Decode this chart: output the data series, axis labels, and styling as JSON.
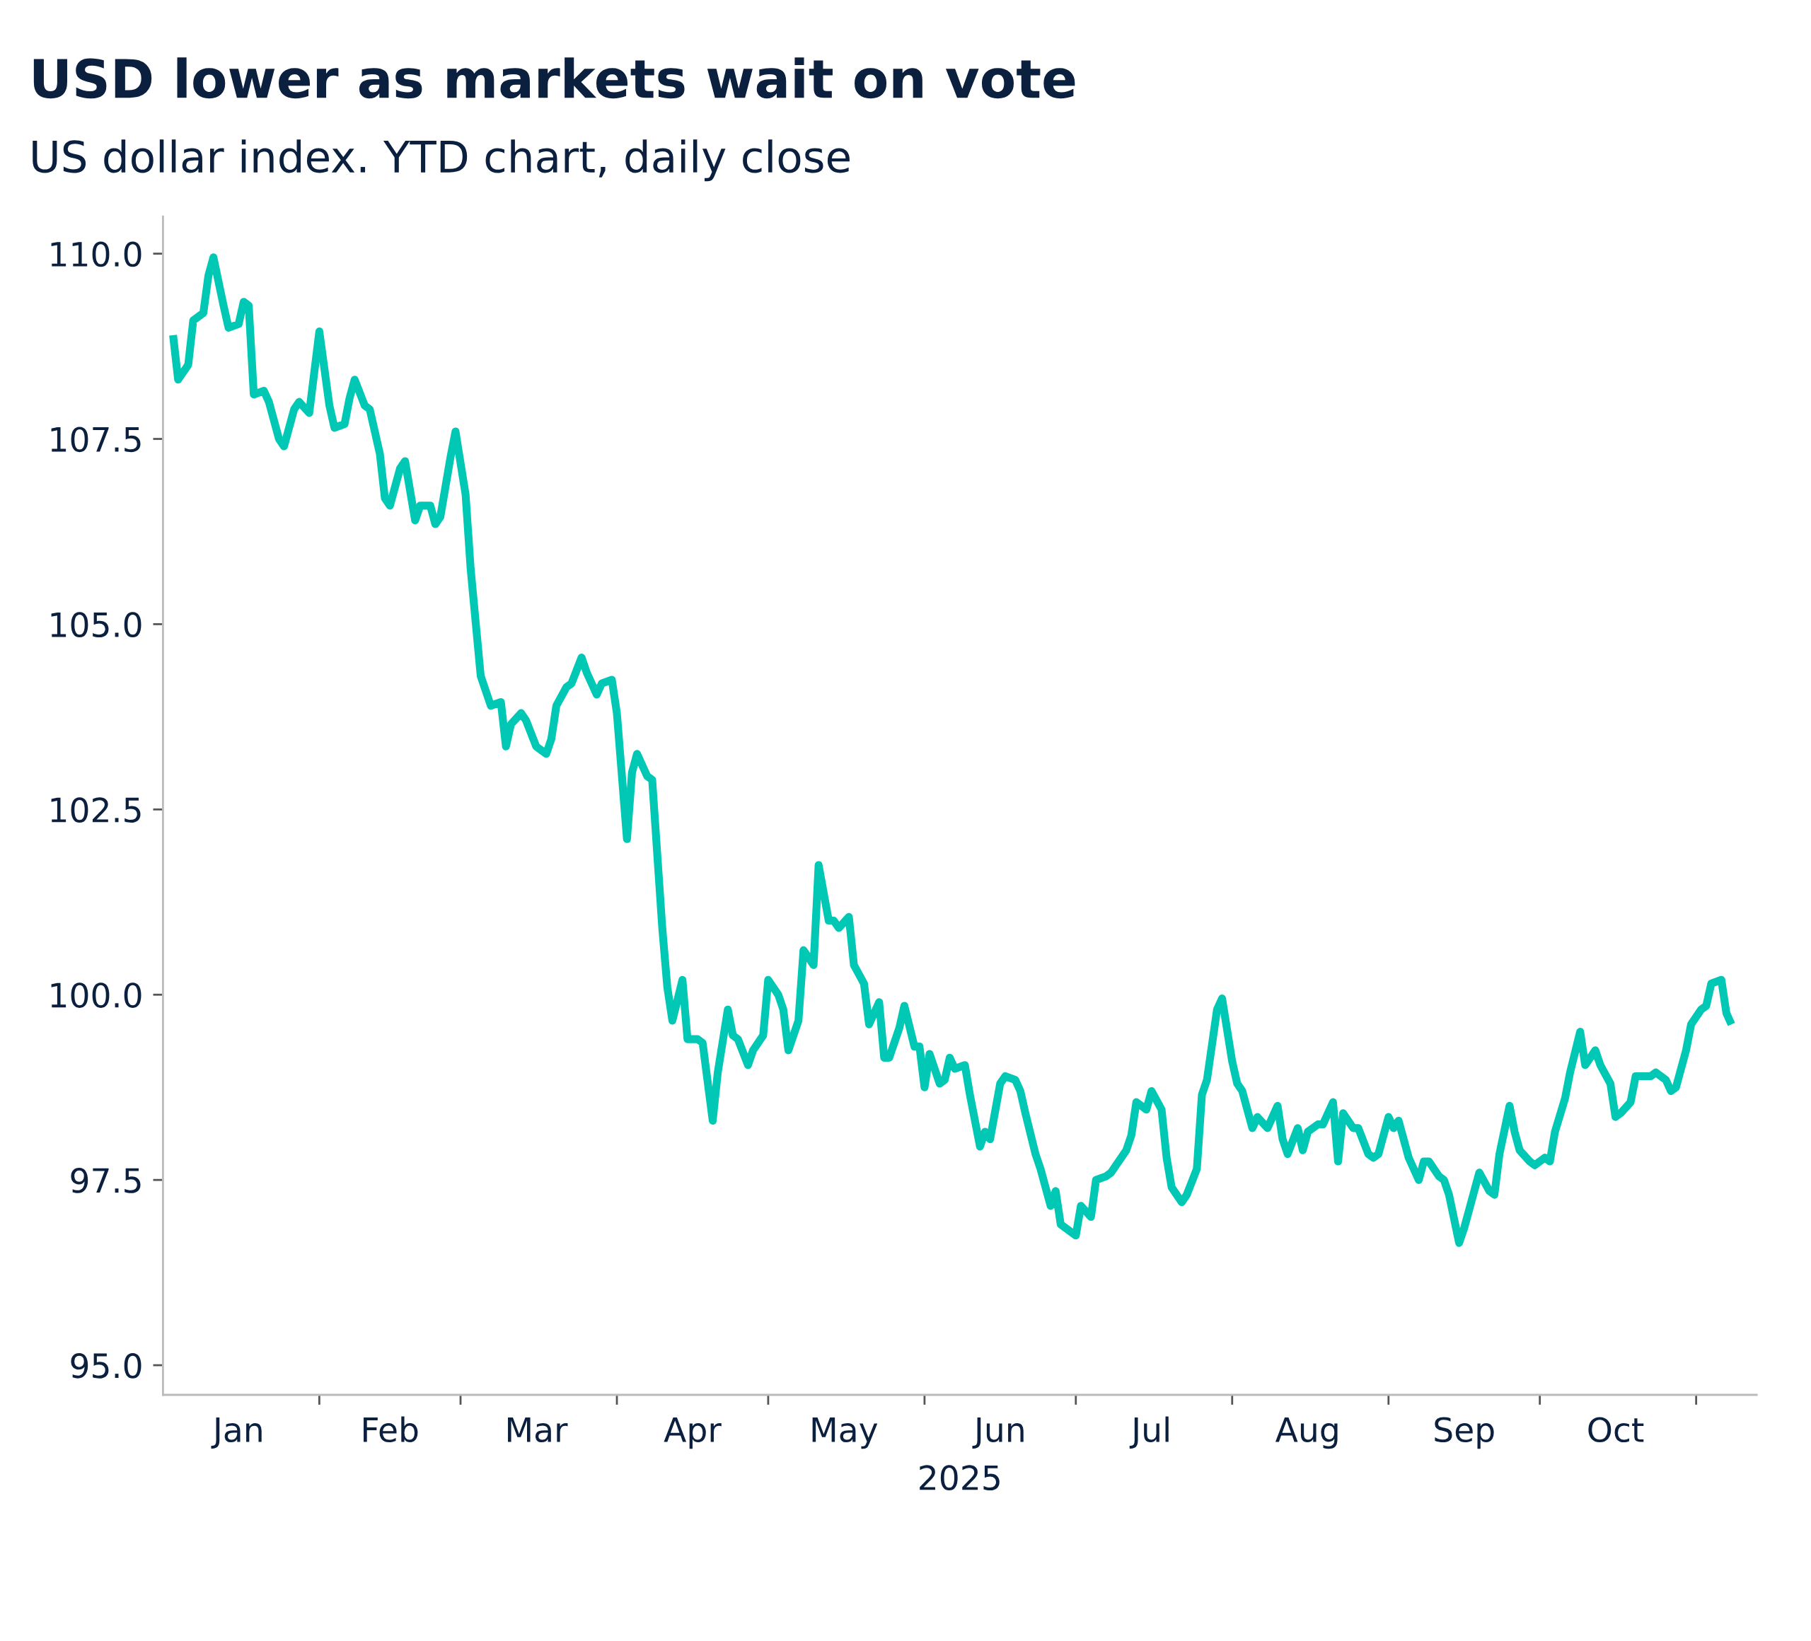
{
  "chart_data": {
    "type": "line",
    "title": "USD lower as markets wait on vote",
    "subtitle": "US dollar index. YTD chart, daily close",
    "xlabel": "2025",
    "x": [
      "2025-01-03",
      "2025-01-04",
      "2025-01-06",
      "2025-01-07",
      "2025-01-09",
      "2025-01-10",
      "2025-01-11",
      "2025-01-13",
      "2025-01-14",
      "2025-01-16",
      "2025-01-17",
      "2025-01-18",
      "2025-01-19",
      "2025-01-21",
      "2025-01-22",
      "2025-01-24",
      "2025-01-25",
      "2025-01-27",
      "2025-01-28",
      "2025-01-30",
      "2025-01-31",
      "2025-02-01",
      "2025-02-03",
      "2025-02-04",
      "2025-02-06",
      "2025-02-07",
      "2025-02-08",
      "2025-02-10",
      "2025-02-11",
      "2025-02-13",
      "2025-02-14",
      "2025-02-15",
      "2025-02-17",
      "2025-02-18",
      "2025-02-20",
      "2025-02-21",
      "2025-02-23",
      "2025-02-24",
      "2025-02-25",
      "2025-02-27",
      "2025-02-28",
      "2025-03-02",
      "2025-03-03",
      "2025-03-05",
      "2025-03-06",
      "2025-03-07",
      "2025-03-09",
      "2025-03-10",
      "2025-03-11",
      "2025-03-13",
      "2025-03-14",
      "2025-03-16",
      "2025-03-18",
      "2025-03-19",
      "2025-03-20",
      "2025-03-22",
      "2025-03-23",
      "2025-03-25",
      "2025-03-26",
      "2025-03-28",
      "2025-03-29",
      "2025-03-31",
      "2025-04-01",
      "2025-04-03",
      "2025-04-04",
      "2025-04-05",
      "2025-04-07",
      "2025-04-08",
      "2025-04-10",
      "2025-04-11",
      "2025-04-12",
      "2025-04-14",
      "2025-04-15",
      "2025-04-17",
      "2025-04-18",
      "2025-04-20",
      "2025-04-21",
      "2025-04-23",
      "2025-04-24",
      "2025-04-25",
      "2025-04-27",
      "2025-04-28",
      "2025-04-30",
      "2025-05-01",
      "2025-05-03",
      "2025-05-04",
      "2025-05-05",
      "2025-05-07",
      "2025-05-08",
      "2025-05-10",
      "2025-05-11",
      "2025-05-13",
      "2025-05-14",
      "2025-05-15",
      "2025-05-17",
      "2025-05-18",
      "2025-05-20",
      "2025-05-21",
      "2025-05-23",
      "2025-05-24",
      "2025-05-25",
      "2025-05-27",
      "2025-05-28",
      "2025-05-30",
      "2025-05-31",
      "2025-06-01",
      "2025-06-02",
      "2025-06-04",
      "2025-06-05",
      "2025-06-06",
      "2025-06-07",
      "2025-06-09",
      "2025-06-10",
      "2025-06-12",
      "2025-06-13",
      "2025-06-14",
      "2025-06-16",
      "2025-06-17",
      "2025-06-19",
      "2025-06-20",
      "2025-06-21",
      "2025-06-23",
      "2025-06-24",
      "2025-06-26",
      "2025-06-27",
      "2025-06-28",
      "2025-06-30",
      "2025-07-01",
      "2025-07-02",
      "2025-07-04",
      "2025-07-05",
      "2025-07-07",
      "2025-07-08",
      "2025-07-09",
      "2025-07-11",
      "2025-07-12",
      "2025-07-13",
      "2025-07-15",
      "2025-07-16",
      "2025-07-18",
      "2025-07-19",
      "2025-07-20",
      "2025-07-22",
      "2025-07-23",
      "2025-07-25",
      "2025-07-26",
      "2025-07-27",
      "2025-07-29",
      "2025-07-30",
      "2025-08-01",
      "2025-08-02",
      "2025-08-03",
      "2025-08-05",
      "2025-08-06",
      "2025-08-08",
      "2025-08-10",
      "2025-08-11",
      "2025-08-12",
      "2025-08-14",
      "2025-08-15",
      "2025-08-16",
      "2025-08-18",
      "2025-08-19",
      "2025-08-21",
      "2025-08-22",
      "2025-08-23",
      "2025-08-25",
      "2025-08-26",
      "2025-08-28",
      "2025-08-29",
      "2025-08-30",
      "2025-09-01",
      "2025-09-02",
      "2025-09-03",
      "2025-09-05",
      "2025-09-07",
      "2025-09-08",
      "2025-09-09",
      "2025-09-11",
      "2025-09-12",
      "2025-09-13",
      "2025-09-15",
      "2025-09-16",
      "2025-09-18",
      "2025-09-19",
      "2025-09-21",
      "2025-09-22",
      "2025-09-23",
      "2025-09-25",
      "2025-09-26",
      "2025-09-27",
      "2025-09-29",
      "2025-09-30",
      "2025-10-02",
      "2025-10-03",
      "2025-10-04",
      "2025-10-06",
      "2025-10-07",
      "2025-10-09",
      "2025-10-10",
      "2025-10-12",
      "2025-10-13",
      "2025-10-15",
      "2025-10-16",
      "2025-10-17",
      "2025-10-19",
      "2025-10-20",
      "2025-10-21",
      "2025-10-23",
      "2025-10-24",
      "2025-10-26",
      "2025-10-27",
      "2025-10-28",
      "2025-10-30",
      "2025-10-31",
      "2025-11-02",
      "2025-11-03",
      "2025-11-04",
      "2025-11-06",
      "2025-11-07",
      "2025-11-08"
    ],
    "series": [
      {
        "color": "#00c8b4",
        "values": [
          108.9,
          108.3,
          108.5,
          109.1,
          109.2,
          109.7,
          109.95,
          109.3,
          109.0,
          109.05,
          109.35,
          109.3,
          108.1,
          108.15,
          108.0,
          107.5,
          107.4,
          107.9,
          108.0,
          107.85,
          108.4,
          108.95,
          107.95,
          107.65,
          107.7,
          108.05,
          108.3,
          107.95,
          107.9,
          107.3,
          106.7,
          106.6,
          107.1,
          107.2,
          106.4,
          106.6,
          106.6,
          106.35,
          106.45,
          107.25,
          107.6,
          106.75,
          105.75,
          104.3,
          104.1,
          103.9,
          103.95,
          103.35,
          103.65,
          103.8,
          103.7,
          103.35,
          103.25,
          103.45,
          103.9,
          104.15,
          104.2,
          104.55,
          104.35,
          104.05,
          104.2,
          104.25,
          103.8,
          102.1,
          103.0,
          103.25,
          102.95,
          102.9,
          100.9,
          100.1,
          99.65,
          100.2,
          99.4,
          99.4,
          99.35,
          98.3,
          98.95,
          99.8,
          99.45,
          99.4,
          99.05,
          99.25,
          99.45,
          100.2,
          100.0,
          99.8,
          99.25,
          99.65,
          100.6,
          100.4,
          101.75,
          101.0,
          101.0,
          100.9,
          101.05,
          100.4,
          100.15,
          99.6,
          99.9,
          99.15,
          99.15,
          99.55,
          99.85,
          99.3,
          99.3,
          98.75,
          99.2,
          98.8,
          98.85,
          99.15,
          99.0,
          99.05,
          98.65,
          97.95,
          98.15,
          98.05,
          98.8,
          98.9,
          98.85,
          98.7,
          98.4,
          97.85,
          97.65,
          97.15,
          97.35,
          96.9,
          96.8,
          96.75,
          97.15,
          97.0,
          97.5,
          97.55,
          97.6,
          97.7,
          97.9,
          98.1,
          98.55,
          98.45,
          98.7,
          98.45,
          97.8,
          97.4,
          97.2,
          97.3,
          97.65,
          98.65,
          98.85,
          99.8,
          99.95,
          99.1,
          98.8,
          98.7,
          98.2,
          98.35,
          98.2,
          98.5,
          98.05,
          97.85,
          98.2,
          97.9,
          98.15,
          98.25,
          98.25,
          98.55,
          97.75,
          98.4,
          98.2,
          98.2,
          97.85,
          97.8,
          97.85,
          98.35,
          98.2,
          98.3,
          97.8,
          97.5,
          97.75,
          97.75,
          97.55,
          97.5,
          97.3,
          96.65,
          96.85,
          97.35,
          97.6,
          97.35,
          97.3,
          97.85,
          98.5,
          98.15,
          97.9,
          97.75,
          97.7,
          97.8,
          97.75,
          98.15,
          98.6,
          98.95,
          99.5,
          99.05,
          99.25,
          99.05,
          98.8,
          98.35,
          98.4,
          98.55,
          98.9,
          98.9,
          98.9,
          98.95,
          98.85,
          98.7,
          98.75,
          99.25,
          99.6,
          99.8,
          99.85,
          100.15,
          100.2,
          99.75,
          99.6
        ]
      }
    ],
    "xlim": [
      "2025-01-01",
      "2025-11-13"
    ],
    "xticks": [
      {
        "value": "2025-02-01",
        "label": null
      },
      {
        "value": "2025-03-01",
        "label": null
      },
      {
        "value": "2025-04-01",
        "label": null
      },
      {
        "value": "2025-05-01",
        "label": null
      },
      {
        "value": "2025-06-01",
        "label": null
      },
      {
        "value": "2025-07-01",
        "label": null
      },
      {
        "value": "2025-08-01",
        "label": null
      },
      {
        "value": "2025-09-01",
        "label": null
      },
      {
        "value": "2025-10-01",
        "label": null
      },
      {
        "value": "2025-11-01",
        "label": null
      },
      {
        "value": "2025-01-16",
        "label": "Jan"
      },
      {
        "value": "2025-02-15",
        "label": "Feb"
      },
      {
        "value": "2025-03-16",
        "label": "Mar"
      },
      {
        "value": "2025-04-16",
        "label": "Apr"
      },
      {
        "value": "2025-05-16",
        "label": "May"
      },
      {
        "value": "2025-06-16",
        "label": "Jun"
      },
      {
        "value": "2025-07-16",
        "label": "Jul"
      },
      {
        "value": "2025-08-16",
        "label": "Aug"
      },
      {
        "value": "2025-09-16",
        "label": "Sep"
      },
      {
        "value": "2025-10-16",
        "label": "Oct"
      }
    ],
    "ylim": [
      94.6,
      110.5
    ],
    "yticks": [
      {
        "value": 95,
        "label": "95.0"
      },
      97.5,
      {
        "value": 100,
        "label": "100.0"
      },
      102.5,
      {
        "value": 105,
        "label": "105.0"
      },
      107.5,
      {
        "value": 110,
        "label": "110.0"
      }
    ],
    "line_style": "solid",
    "marker": "none"
  }
}
